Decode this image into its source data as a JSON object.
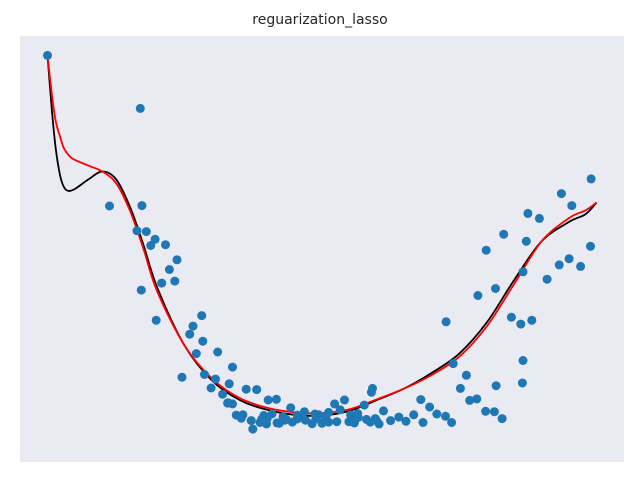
{
  "chart_data": {
    "type": "scatter",
    "title": "reguarization_lasso",
    "xlabel": "",
    "ylabel": "",
    "xlim": [
      -0.05,
      1.05
    ],
    "ylim": [
      -0.05,
      1.05
    ],
    "grid": false,
    "colors": {
      "background": "#e9eaf2",
      "points": "#1f77b4",
      "line_black": "#000000",
      "line_red": "#ff0000"
    },
    "points": [
      [
        0.0,
        1.0
      ],
      [
        0.169,
        0.863
      ],
      [
        0.113,
        0.611
      ],
      [
        0.188,
        0.509
      ],
      [
        0.215,
        0.511
      ],
      [
        0.236,
        0.472
      ],
      [
        0.171,
        0.394
      ],
      [
        0.198,
        0.316
      ],
      [
        0.281,
        0.328
      ],
      [
        0.259,
        0.28
      ],
      [
        0.31,
        0.234
      ],
      [
        0.283,
        0.262
      ],
      [
        0.245,
        0.169
      ],
      [
        0.286,
        0.176
      ],
      [
        0.331,
        0.152
      ],
      [
        0.337,
        0.195
      ],
      [
        0.362,
        0.138
      ],
      [
        0.381,
        0.137
      ],
      [
        0.328,
        0.102
      ],
      [
        0.337,
        0.1
      ],
      [
        0.356,
        0.072
      ],
      [
        0.394,
        0.07
      ],
      [
        0.402,
        0.11
      ],
      [
        0.417,
        0.112
      ],
      [
        0.387,
        0.052
      ],
      [
        0.374,
        0.035
      ],
      [
        0.422,
        0.05
      ],
      [
        0.432,
        0.058
      ],
      [
        0.443,
        0.09
      ],
      [
        0.461,
        0.067
      ],
      [
        0.468,
        0.08
      ],
      [
        0.482,
        0.049
      ],
      [
        0.5,
        0.05
      ],
      [
        0.494,
        0.072
      ],
      [
        0.512,
        0.053
      ],
      [
        0.527,
        0.054
      ],
      [
        0.533,
        0.085
      ],
      [
        0.549,
        0.054
      ],
      [
        0.559,
        0.051
      ],
      [
        0.566,
        0.065
      ],
      [
        0.581,
        0.06
      ],
      [
        0.599,
        0.057
      ],
      [
        0.612,
        0.082
      ],
      [
        0.625,
        0.057
      ],
      [
        0.64,
        0.066
      ],
      [
        0.653,
        0.055
      ],
      [
        0.667,
        0.072
      ],
      [
        0.68,
        0.111
      ],
      [
        0.696,
        0.092
      ],
      [
        0.684,
        0.052
      ],
      [
        0.709,
        0.074
      ],
      [
        0.725,
        0.068
      ],
      [
        0.736,
        0.052
      ],
      [
        0.752,
        0.14
      ],
      [
        0.769,
        0.109
      ],
      [
        0.782,
        0.113
      ],
      [
        0.763,
        0.174
      ],
      [
        0.798,
        0.081
      ],
      [
        0.814,
        0.08
      ],
      [
        0.828,
        0.062
      ],
      [
        0.739,
        0.204
      ],
      [
        0.726,
        0.312
      ],
      [
        0.784,
        0.38
      ],
      [
        0.845,
        0.324
      ],
      [
        0.862,
        0.306
      ],
      [
        0.882,
        0.316
      ],
      [
        0.91,
        0.422
      ],
      [
        0.932,
        0.459
      ],
      [
        0.95,
        0.475
      ],
      [
        0.971,
        0.455
      ],
      [
        0.989,
        0.507
      ],
      [
        0.99,
        0.681
      ],
      [
        0.872,
        0.52
      ],
      [
        0.866,
        0.441
      ],
      [
        0.831,
        0.538
      ],
      [
        0.799,
        0.497
      ],
      [
        0.816,
        0.398
      ],
      [
        0.866,
        0.212
      ],
      [
        0.817,
        0.147
      ],
      [
        0.865,
        0.154
      ],
      [
        0.955,
        0.612
      ],
      [
        0.936,
        0.643
      ],
      [
        0.896,
        0.579
      ],
      [
        0.875,
        0.592
      ],
      [
        0.592,
        0.14
      ],
      [
        0.577,
        0.097
      ],
      [
        0.565,
        0.075
      ],
      [
        0.552,
        0.072
      ],
      [
        0.541,
        0.11
      ],
      [
        0.512,
        0.078
      ],
      [
        0.489,
        0.062
      ],
      [
        0.47,
        0.058
      ],
      [
        0.455,
        0.061
      ],
      [
        0.446,
        0.053
      ],
      [
        0.429,
        0.067
      ],
      [
        0.409,
        0.074
      ],
      [
        0.399,
        0.048
      ],
      [
        0.39,
        0.06
      ],
      [
        0.371,
        0.057
      ],
      [
        0.353,
        0.063
      ],
      [
        0.344,
        0.071
      ],
      [
        0.329,
        0.103
      ],
      [
        0.319,
        0.125
      ],
      [
        0.306,
        0.164
      ],
      [
        0.298,
        0.141
      ],
      [
        0.271,
        0.23
      ],
      [
        0.265,
        0.301
      ],
      [
        0.232,
        0.417
      ],
      [
        0.222,
        0.447
      ],
      [
        0.208,
        0.412
      ],
      [
        0.196,
        0.525
      ],
      [
        0.163,
        0.547
      ],
      [
        0.172,
        0.612
      ],
      [
        0.18,
        0.545
      ],
      [
        0.597,
        0.062
      ],
      [
        0.604,
        0.048
      ],
      [
        0.588,
        0.053
      ],
      [
        0.557,
        0.055
      ],
      [
        0.523,
        0.1
      ],
      [
        0.507,
        0.067
      ],
      [
        0.487,
        0.074
      ],
      [
        0.455,
        0.071
      ],
      [
        0.435,
        0.06
      ],
      [
        0.418,
        0.051
      ],
      [
        0.4,
        0.062
      ],
      [
        0.59,
        0.13
      ]
    ],
    "series": [
      {
        "color": "#000000",
        "x": [
          0.0,
          0.008,
          0.015,
          0.023,
          0.03,
          0.038,
          0.05,
          0.075,
          0.1,
          0.125,
          0.15,
          0.175,
          0.2,
          0.25,
          0.3,
          0.35,
          0.4,
          0.45,
          0.5,
          0.55,
          0.6,
          0.65,
          0.7,
          0.75,
          0.8,
          0.85,
          0.9,
          0.95,
          0.98,
          1.0
        ],
        "y": [
          1.0,
          0.86,
          0.76,
          0.69,
          0.66,
          0.65,
          0.655,
          0.68,
          0.7,
          0.68,
          0.61,
          0.51,
          0.4,
          0.25,
          0.16,
          0.11,
          0.085,
          0.072,
          0.07,
          0.082,
          0.11,
          0.14,
          0.18,
          0.23,
          0.31,
          0.42,
          0.52,
          0.57,
          0.59,
          0.62
        ]
      },
      {
        "color": "#ff0000",
        "x": [
          0.0,
          0.008,
          0.015,
          0.023,
          0.03,
          0.04,
          0.05,
          0.075,
          0.1,
          0.125,
          0.15,
          0.175,
          0.2,
          0.25,
          0.3,
          0.35,
          0.4,
          0.45,
          0.5,
          0.55,
          0.6,
          0.65,
          0.7,
          0.75,
          0.8,
          0.85,
          0.9,
          0.95,
          0.98,
          1.0
        ],
        "y": [
          1.0,
          0.9,
          0.83,
          0.79,
          0.76,
          0.74,
          0.73,
          0.715,
          0.7,
          0.67,
          0.6,
          0.5,
          0.39,
          0.25,
          0.165,
          0.115,
          0.09,
          0.078,
          0.076,
          0.086,
          0.112,
          0.14,
          0.175,
          0.222,
          0.3,
          0.41,
          0.52,
          0.58,
          0.6,
          0.62
        ]
      }
    ]
  }
}
